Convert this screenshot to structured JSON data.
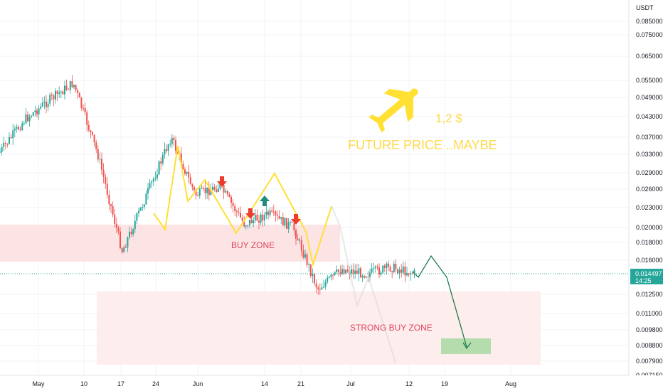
{
  "chart_data": {
    "type": "candlestick",
    "currency": "USDT",
    "y_scale": "log",
    "y_ticks": [
      "0.085000",
      "0.075000",
      "0.065000",
      "0.055000",
      "0.049000",
      "0.043000",
      "0.037000",
      "0.033000",
      "0.029000",
      "0.026000",
      "0.023000",
      "0.020000",
      "0.018000",
      "0.016000",
      "0.012500",
      "0.011000",
      "0.009800",
      "0.008800",
      "0.007900",
      "0.007150"
    ],
    "x_ticks": [
      "May",
      "10",
      "17",
      "24",
      "Jun",
      "14",
      "21",
      "Jul",
      "12",
      "19",
      "Aug"
    ],
    "last_price": "0.014497",
    "countdown": "14:25",
    "colors": {
      "up": "#26a69a",
      "down": "#ef5350",
      "zone": "#f7c7c7",
      "yellow": "#ffe033",
      "projection": "#1f7a4e",
      "target": "#a8d8a0"
    },
    "price_path": [
      [
        "May",
        0.0335
      ],
      [
        "May",
        0.042
      ],
      [
        "10",
        0.048
      ],
      [
        "10",
        0.054
      ],
      [
        "17",
        0.033
      ],
      [
        "17",
        0.017
      ],
      [
        "24",
        0.025
      ],
      [
        "24",
        0.037
      ],
      [
        "Jun",
        0.025
      ],
      [
        "Jun",
        0.0265
      ],
      [
        "14",
        0.0205
      ],
      [
        "14",
        0.022
      ],
      [
        "21",
        0.02
      ],
      [
        "21",
        0.013
      ],
      [
        "21",
        0.015
      ],
      [
        "Jul",
        0.0145
      ],
      [
        "Jul",
        0.0152
      ],
      [
        "12",
        0.0145
      ]
    ],
    "annotations": {
      "buy_zone": "BUY ZONE",
      "strong_buy_zone": "STRONG BUY ZONE",
      "future_price": "FUTURE PRICE ..MAYBE",
      "price_target": "1,2 $"
    },
    "icons": [
      "airplane-icon",
      "arrow-down-icon",
      "arrow-up-icon"
    ]
  }
}
